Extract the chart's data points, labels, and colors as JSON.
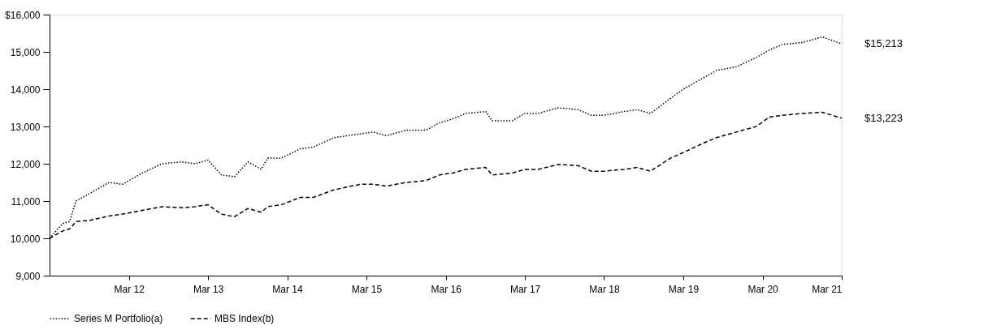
{
  "chart_data": {
    "type": "line",
    "x": [
      "2011-03",
      "2011-05",
      "2011-06",
      "2011-07",
      "2011-09",
      "2011-12",
      "2012-02",
      "2012-05",
      "2012-08",
      "2012-11",
      "2013-01",
      "2013-03",
      "2013-05",
      "2013-07",
      "2013-09",
      "2013-11",
      "2013-12",
      "2014-02",
      "2014-05",
      "2014-07",
      "2014-10",
      "2015-02",
      "2015-04",
      "2015-06",
      "2015-09",
      "2015-12",
      "2016-02",
      "2016-04",
      "2016-06",
      "2016-09",
      "2016-10",
      "2017-01",
      "2017-03",
      "2017-05",
      "2017-08",
      "2017-11",
      "2018-01",
      "2018-03",
      "2018-06",
      "2018-08",
      "2018-10",
      "2019-01",
      "2019-03",
      "2019-06",
      "2019-08",
      "2019-11",
      "2020-02",
      "2020-04",
      "2020-06",
      "2020-09",
      "2020-12",
      "2021-03"
    ],
    "series": [
      {
        "name": "Series M Portfolio(a)",
        "color": "#000000",
        "line_style": "dotted",
        "values": [
          10000,
          10400,
          10450,
          11000,
          11200,
          11500,
          11450,
          11750,
          12000,
          12050,
          12000,
          12100,
          11700,
          11650,
          12050,
          11850,
          12150,
          12150,
          12400,
          12450,
          12700,
          12800,
          12850,
          12750,
          12900,
          12900,
          13100,
          13200,
          13350,
          13400,
          13150,
          13150,
          13350,
          13350,
          13500,
          13450,
          13300,
          13300,
          13400,
          13450,
          13350,
          13750,
          14000,
          14300,
          14500,
          14600,
          14850,
          15050,
          15200,
          15250,
          15400,
          15213
        ]
      },
      {
        "name": "MBS Index(b)",
        "color": "#000000",
        "line_style": "dashed",
        "values": [
          10000,
          10200,
          10250,
          10450,
          10480,
          10600,
          10650,
          10750,
          10850,
          10820,
          10850,
          10900,
          10650,
          10580,
          10800,
          10700,
          10850,
          10900,
          11100,
          11100,
          11300,
          11450,
          11450,
          11400,
          11500,
          11550,
          11700,
          11750,
          11850,
          11900,
          11700,
          11750,
          11850,
          11850,
          11980,
          11950,
          11800,
          11800,
          11850,
          11900,
          11800,
          12150,
          12300,
          12550,
          12700,
          12850,
          13000,
          13250,
          13300,
          13350,
          13380,
          13223
        ]
      }
    ],
    "xlim": [
      "2011-03",
      "2021-03"
    ],
    "xticks": [
      {
        "value": "2012-03",
        "label": "Mar 12"
      },
      {
        "value": "2013-03",
        "label": "Mar 13"
      },
      {
        "value": "2014-03",
        "label": "Mar 14"
      },
      {
        "value": "2015-03",
        "label": "Mar 15"
      },
      {
        "value": "2016-03",
        "label": "Mar 16"
      },
      {
        "value": "2017-03",
        "label": "Mar 17"
      },
      {
        "value": "2018-03",
        "label": "Mar 18"
      },
      {
        "value": "2019-03",
        "label": "Mar 19"
      },
      {
        "value": "2020-03",
        "label": "Mar 20"
      },
      {
        "value": "2021-03",
        "label": "Mar 21"
      }
    ],
    "ylim": [
      9000,
      16000
    ],
    "yticks": [
      {
        "value": 9000,
        "label": "9,000"
      },
      {
        "value": 10000,
        "label": "10,000"
      },
      {
        "value": 11000,
        "label": "11,000"
      },
      {
        "value": 12000,
        "label": "12,000"
      },
      {
        "value": 13000,
        "label": "13,000"
      },
      {
        "value": 14000,
        "label": "14,000"
      },
      {
        "value": 15000,
        "label": "15,000"
      },
      {
        "value": 16000,
        "label": "$16,000"
      }
    ],
    "annotations": [
      {
        "text": "$15,213",
        "x": "2021-03",
        "y": 15213
      },
      {
        "text": "$13,223",
        "x": "2021-03",
        "y": 13223
      }
    ],
    "legend": "bottom",
    "grid": false,
    "marker": "none"
  }
}
